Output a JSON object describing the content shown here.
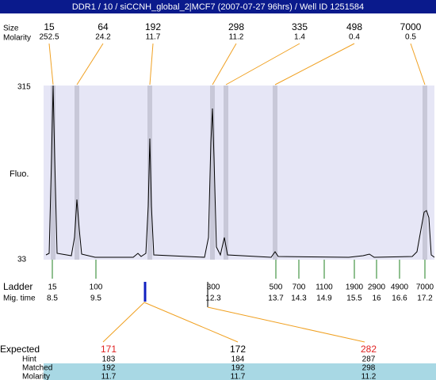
{
  "header": {
    "title": "DDR1 / 10 / siCCNH_global_2|MCF7 (2007-07-27 96hrs) / Well ID 1251584"
  },
  "peaks": {
    "labels": [
      "Size",
      "Molarity"
    ],
    "sizes": [
      "15",
      "64",
      "192",
      "298",
      "335",
      "498",
      "7000"
    ],
    "molarity": [
      "252.5",
      "24.2",
      "11.7",
      "11.2",
      "1.4",
      "0.4",
      "0.5"
    ]
  },
  "plot": {
    "y_label": "Fluo.",
    "y_max": "315",
    "y_min": "33"
  },
  "ladder": {
    "labels": [
      "Ladder",
      "Mig. time"
    ],
    "sizes": [
      "15",
      "100",
      "300",
      "500",
      "700",
      "1100",
      "1900",
      "2900",
      "4900",
      "7000"
    ],
    "mig_times": [
      "8.5",
      "9.5",
      "12.3",
      "13.7",
      "14.3",
      "14.9",
      "15.5",
      "16",
      "16.6",
      "17.2"
    ]
  },
  "table": {
    "row_labels": [
      "Expected",
      "Hint",
      "Matched",
      "Molarity"
    ],
    "rows": [
      [
        "171",
        "172",
        "282"
      ],
      [
        "183",
        "184",
        "287"
      ],
      [
        "192",
        "192",
        "298"
      ],
      [
        "11.7",
        "11.7",
        "11.2"
      ]
    ],
    "expected_colors": [
      "#e02020",
      "#000000",
      "#e02020"
    ]
  }
}
